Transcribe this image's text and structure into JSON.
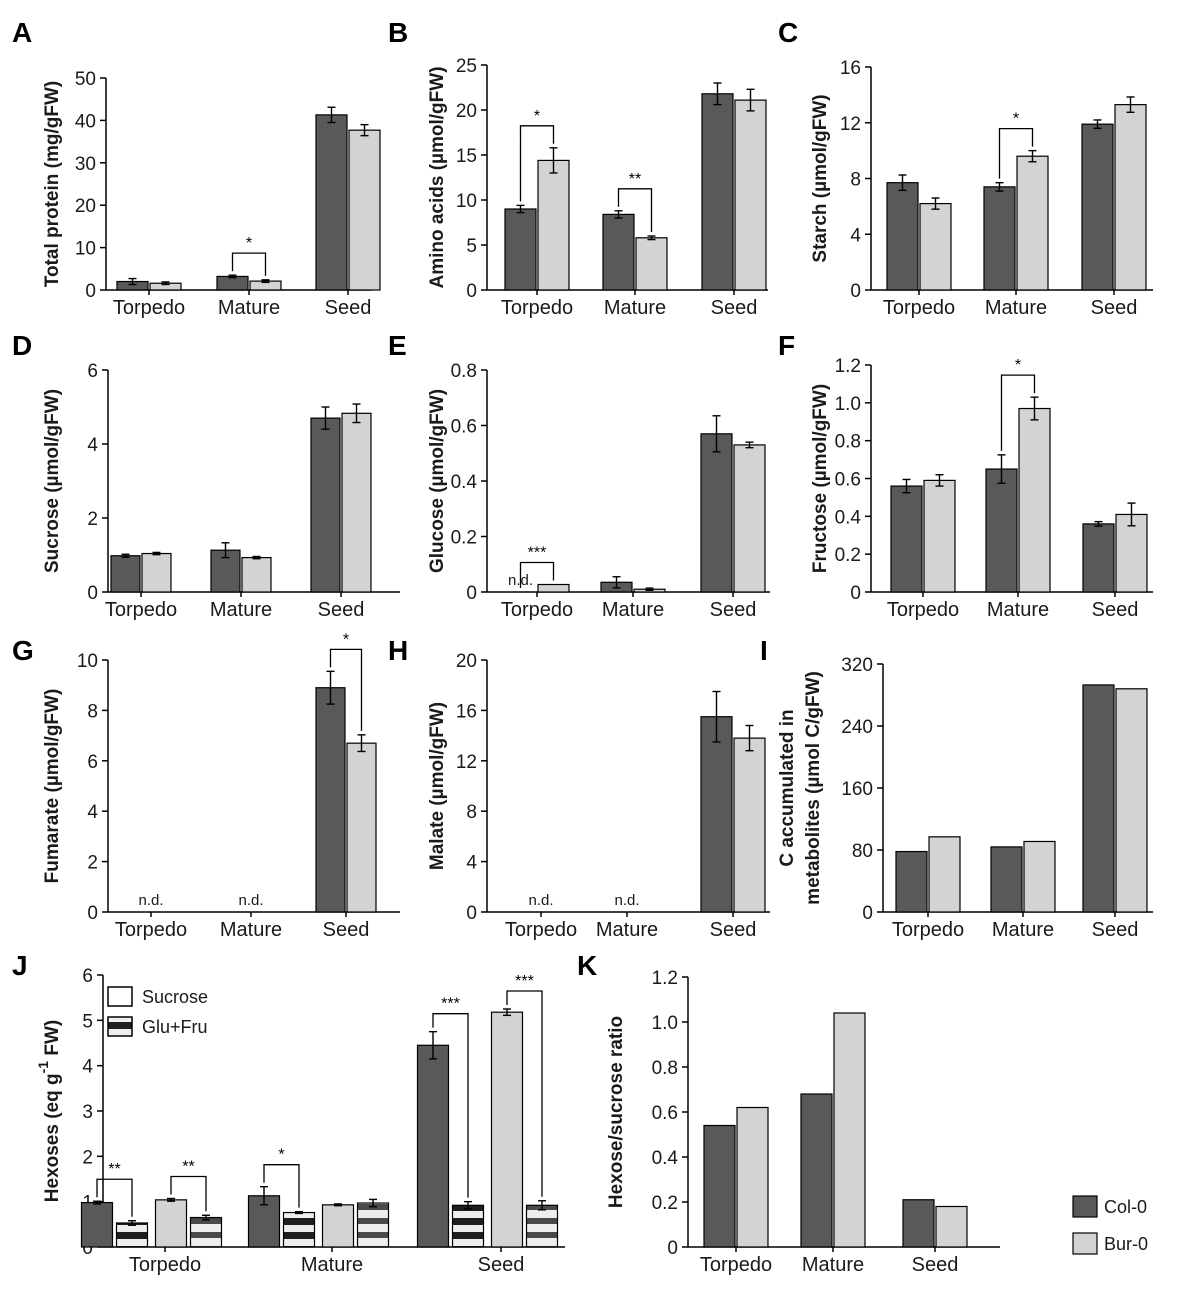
{
  "legend": {
    "items": [
      {
        "label": "Col-0",
        "color": "#58595b"
      },
      {
        "label": "Bur-0",
        "color": "#d1d3d4"
      }
    ],
    "panel_j_items": [
      {
        "label": "Sucrose",
        "pattern": "open"
      },
      {
        "label": "Glu+Fru",
        "pattern": "striped"
      }
    ]
  },
  "chart_data": [
    {
      "id": "A",
      "type": "bar",
      "letter": "A",
      "ylabel": "Total protein (mg/gFW)",
      "categories": [
        "Torpedo",
        "Mature",
        "Seed"
      ],
      "ylim": [
        0,
        50
      ],
      "yticks": [
        0,
        10,
        20,
        30,
        40,
        50
      ],
      "ytick_labels": [
        "0",
        "10",
        "20",
        "30",
        "40",
        "50"
      ],
      "series": [
        {
          "name": "Col-0",
          "values": [
            2.0,
            3.2,
            41.3
          ],
          "errors": [
            0.7,
            0.3,
            1.8
          ]
        },
        {
          "name": "Bur-0",
          "values": [
            1.6,
            2.1,
            37.7
          ],
          "errors": [
            0.3,
            0.3,
            1.3
          ]
        }
      ],
      "nd": [],
      "significance": [
        {
          "label": "*",
          "category": 1,
          "type": "pair"
        }
      ]
    },
    {
      "id": "B",
      "type": "bar",
      "letter": "B",
      "ylabel": "Amino acids (µmol/gFW)",
      "categories": [
        "Torpedo",
        "Mature",
        "Seed"
      ],
      "ylim": [
        0,
        25
      ],
      "yticks": [
        0,
        5,
        10,
        15,
        20,
        25
      ],
      "ytick_labels": [
        "0",
        "5",
        "10",
        "15",
        "20",
        "25"
      ],
      "series": [
        {
          "name": "Col-0",
          "values": [
            9.0,
            8.4,
            21.8
          ],
          "errors": [
            0.4,
            0.4,
            1.2
          ]
        },
        {
          "name": "Bur-0",
          "values": [
            14.4,
            5.8,
            21.1
          ],
          "errors": [
            1.4,
            0.2,
            1.2
          ]
        }
      ],
      "nd": [],
      "significance": [
        {
          "label": "*",
          "category": 0,
          "type": "pair"
        },
        {
          "label": "**",
          "category": 1,
          "type": "pair"
        }
      ]
    },
    {
      "id": "C",
      "type": "bar",
      "letter": "C",
      "ylabel": "Starch (µmol/gFW)",
      "categories": [
        "Torpedo",
        "Mature",
        "Seed"
      ],
      "ylim": [
        0,
        16
      ],
      "yticks": [
        0,
        4,
        8,
        12,
        16
      ],
      "ytick_labels": [
        "0",
        "4",
        "8",
        "12",
        "16"
      ],
      "series": [
        {
          "name": "Col-0",
          "values": [
            7.7,
            7.4,
            11.9
          ],
          "errors": [
            0.55,
            0.3,
            0.3
          ]
        },
        {
          "name": "Bur-0",
          "values": [
            6.2,
            9.6,
            13.3
          ],
          "errors": [
            0.4,
            0.4,
            0.55
          ]
        }
      ],
      "nd": [],
      "significance": [
        {
          "label": "*",
          "category": 1,
          "type": "pair"
        }
      ]
    },
    {
      "id": "D",
      "type": "bar",
      "letter": "D",
      "ylabel": "Sucrose (µmol/gFW)",
      "categories": [
        "Torpedo",
        "Mature",
        "Seed"
      ],
      "ylim": [
        0,
        6
      ],
      "yticks": [
        0,
        2,
        4,
        6
      ],
      "ytick_labels": [
        "0",
        "2",
        "4",
        "6"
      ],
      "series": [
        {
          "name": "Col-0",
          "values": [
            0.98,
            1.13,
            4.7
          ],
          "errors": [
            0.04,
            0.2,
            0.3
          ]
        },
        {
          "name": "Bur-0",
          "values": [
            1.04,
            0.93,
            4.83
          ],
          "errors": [
            0.03,
            0.03,
            0.25
          ]
        }
      ],
      "nd": [],
      "significance": []
    },
    {
      "id": "E",
      "type": "bar",
      "letter": "E",
      "ylabel": "Glucose (µmol/gFW)",
      "categories": [
        "Torpedo",
        "Mature",
        "Seed"
      ],
      "ylim": [
        0,
        0.8
      ],
      "yticks": [
        0,
        0.2,
        0.4,
        0.6,
        0.8
      ],
      "ytick_labels": [
        "0",
        "0.2",
        "0.4",
        "0.6",
        "0.8"
      ],
      "series": [
        {
          "name": "Col-0",
          "values": [
            0,
            0.035,
            0.57
          ],
          "errors": [
            0,
            0.02,
            0.065
          ]
        },
        {
          "name": "Bur-0",
          "values": [
            0.027,
            0.01,
            0.53
          ],
          "errors": [
            0,
            0.004,
            0.01
          ]
        }
      ],
      "nd": [
        {
          "category": 0,
          "series": 0,
          "label": "n.d."
        }
      ],
      "significance": [
        {
          "label": "***",
          "category": 0,
          "type": "pair"
        }
      ]
    },
    {
      "id": "F",
      "type": "bar",
      "letter": "F",
      "ylabel": "Fructose (µmol/gFW)",
      "categories": [
        "Torpedo",
        "Mature",
        "Seed"
      ],
      "ylim": [
        0,
        1.2
      ],
      "yticks": [
        0,
        0.2,
        0.4,
        0.6,
        0.8,
        1.0,
        1.2
      ],
      "ytick_labels": [
        "0",
        "0.2",
        "0.4",
        "0.6",
        "0.8",
        "1.0",
        "1.2"
      ],
      "series": [
        {
          "name": "Col-0",
          "values": [
            0.56,
            0.65,
            0.36
          ],
          "errors": [
            0.035,
            0.075,
            0.012
          ]
        },
        {
          "name": "Bur-0",
          "values": [
            0.59,
            0.97,
            0.41
          ],
          "errors": [
            0.03,
            0.06,
            0.06
          ]
        }
      ],
      "nd": [],
      "significance": [
        {
          "label": "*",
          "category": 1,
          "type": "pair"
        }
      ]
    },
    {
      "id": "G",
      "type": "bar",
      "letter": "G",
      "ylabel": "Fumarate (µmol/gFW)",
      "categories": [
        "Torpedo",
        "Mature",
        "Seed"
      ],
      "ylim": [
        0,
        10
      ],
      "yticks": [
        0,
        2,
        4,
        6,
        8,
        10
      ],
      "ytick_labels": [
        "0",
        "2",
        "4",
        "6",
        "8",
        "10"
      ],
      "series": [
        {
          "name": "Col-0",
          "values": [
            0,
            0,
            8.9
          ],
          "errors": [
            0,
            0,
            0.65
          ]
        },
        {
          "name": "Bur-0",
          "values": [
            0,
            0,
            6.7
          ],
          "errors": [
            0,
            0,
            0.33
          ]
        }
      ],
      "nd": [
        {
          "category": 0,
          "series": -1,
          "label": "n.d."
        },
        {
          "category": 1,
          "series": -1,
          "label": "n.d."
        }
      ],
      "significance": [
        {
          "label": "*",
          "category": 2,
          "type": "pair"
        }
      ]
    },
    {
      "id": "H",
      "type": "bar",
      "letter": "H",
      "ylabel": "Malate (µmol/gFW)",
      "categories": [
        "Torpedo",
        "Mature",
        "Seed"
      ],
      "ylim": [
        0,
        20
      ],
      "yticks": [
        0,
        4,
        8,
        12,
        16,
        20
      ],
      "ytick_labels": [
        "0",
        "4",
        "8",
        "12",
        "16",
        "20"
      ],
      "series": [
        {
          "name": "Col-0",
          "values": [
            0,
            0,
            15.5
          ],
          "errors": [
            0,
            0,
            2.0
          ]
        },
        {
          "name": "Bur-0",
          "values": [
            0,
            0,
            13.8
          ],
          "errors": [
            0,
            0,
            1.0
          ]
        }
      ],
      "nd": [
        {
          "category": 0,
          "series": -1,
          "label": "n.d."
        },
        {
          "category": 1,
          "series": -1,
          "label": "n.d."
        }
      ],
      "significance": []
    },
    {
      "id": "I",
      "type": "bar",
      "letter": "I",
      "ylabel": "C accumulated in metabolites (µmol C/gFW)",
      "ylabel_lines": [
        "C accumulated in",
        "metabolites (µmol C/gFW)"
      ],
      "categories": [
        "Torpedo",
        "Mature",
        "Seed"
      ],
      "ylim": [
        0,
        320
      ],
      "yticks": [
        0,
        80,
        160,
        240,
        320
      ],
      "ytick_labels": [
        "0",
        "80",
        "160",
        "240",
        "320"
      ],
      "series": [
        {
          "name": "Col-0",
          "values": [
            78,
            84,
            293
          ],
          "errors": [
            0,
            0,
            0
          ]
        },
        {
          "name": "Bur-0",
          "values": [
            97,
            91,
            288
          ],
          "errors": [
            0,
            0,
            0
          ]
        }
      ],
      "nd": [],
      "significance": []
    },
    {
      "id": "J",
      "type": "bar",
      "letter": "J",
      "ylabel": "Hexoses (eq g-1 FW)",
      "ylabel_parts": [
        "Hexoses (eq g",
        "-1",
        " FW)"
      ],
      "categories": [
        "Torpedo",
        "Mature",
        "Seed"
      ],
      "ylim": [
        0,
        6
      ],
      "yticks": [
        0,
        1,
        2,
        3,
        4,
        5,
        6
      ],
      "ytick_labels": [
        "0",
        "1",
        "2",
        "3",
        "4",
        "5",
        "6"
      ],
      "bars_per_group": [
        {
          "genotype": "Col-0",
          "component": "Sucrose"
        },
        {
          "genotype": "Col-0",
          "component": "Glu+Fru"
        },
        {
          "genotype": "Bur-0",
          "component": "Sucrose"
        },
        {
          "genotype": "Bur-0",
          "component": "Glu+Fru"
        }
      ],
      "values": [
        [
          0.98,
          0.53,
          1.04,
          0.65
        ],
        [
          1.13,
          0.76,
          0.93,
          0.97
        ],
        [
          4.45,
          0.92,
          5.18,
          0.92
        ]
      ],
      "errors": [
        [
          0.03,
          0.05,
          0.03,
          0.05
        ],
        [
          0.2,
          0.02,
          0.02,
          0.08
        ],
        [
          0.3,
          0.08,
          0.07,
          0.1
        ]
      ],
      "significance": [
        {
          "label": "**",
          "category": 0,
          "from": 0,
          "to": 1
        },
        {
          "label": "**",
          "category": 0,
          "from": 2,
          "to": 3
        },
        {
          "label": "*",
          "category": 1,
          "from": 0,
          "to": 1
        },
        {
          "label": "***",
          "category": 2,
          "from": 0,
          "to": 1
        },
        {
          "label": "***",
          "category": 2,
          "from": 2,
          "to": 3
        }
      ]
    },
    {
      "id": "K",
      "type": "bar",
      "letter": "K",
      "ylabel": "Hexose/sucrose ratio",
      "categories": [
        "Torpedo",
        "Mature",
        "Seed"
      ],
      "ylim": [
        0,
        1.2
      ],
      "yticks": [
        0,
        0.2,
        0.4,
        0.6,
        0.8,
        1.0,
        1.2
      ],
      "ytick_labels": [
        "0",
        "0.2",
        "0.4",
        "0.6",
        "0.8",
        "1.0",
        "1.2"
      ],
      "series": [
        {
          "name": "Col-0",
          "values": [
            0.54,
            0.68,
            0.21
          ],
          "errors": [
            0,
            0,
            0
          ]
        },
        {
          "name": "Bur-0",
          "values": [
            0.62,
            1.04,
            0.18
          ],
          "errors": [
            0,
            0,
            0
          ]
        }
      ],
      "nd": [],
      "significance": []
    }
  ]
}
